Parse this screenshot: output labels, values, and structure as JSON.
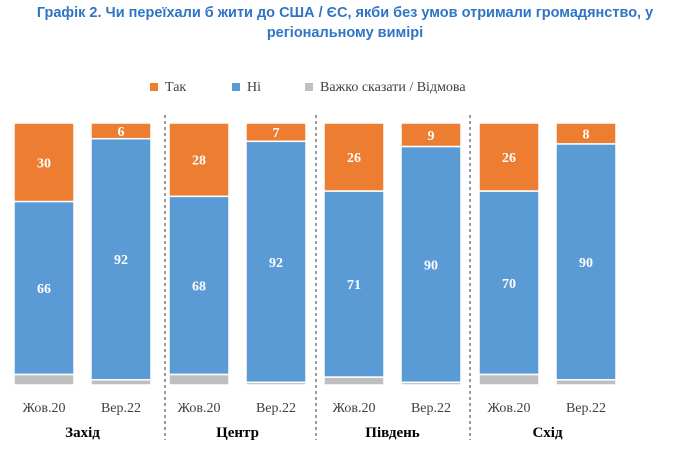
{
  "title_line1": "Графік 2. Чи переїхали б жити до США / ЄС, якби без умов отримали громадянство, у",
  "title_line2": "регіональному вимірі",
  "chart_data": {
    "type": "bar",
    "stacked": true,
    "ylim": [
      0,
      100
    ],
    "legend_position": "top",
    "periods": [
      "Жов.20",
      "Вер.22"
    ],
    "regions": [
      "Захід",
      "Центр",
      "Південь",
      "Схід"
    ],
    "categories": [
      "Жов.20",
      "Вер.22",
      "Жов.20",
      "Вер.22",
      "Жов.20",
      "Вер.22",
      "Жов.20",
      "Вер.22"
    ],
    "series": [
      {
        "name": "Так",
        "color": "#ed7d31",
        "values": [
          30,
          6,
          28,
          7,
          26,
          9,
          26,
          8
        ]
      },
      {
        "name": "Ні",
        "color": "#5b9bd5",
        "values": [
          66,
          92,
          68,
          92,
          71,
          90,
          70,
          90
        ]
      },
      {
        "name": "Важко сказати / Відмова",
        "color": "#bfbfbf",
        "values": [
          4,
          2,
          4,
          1,
          3,
          1,
          4,
          2
        ]
      }
    ],
    "separator_color": "#595959"
  }
}
